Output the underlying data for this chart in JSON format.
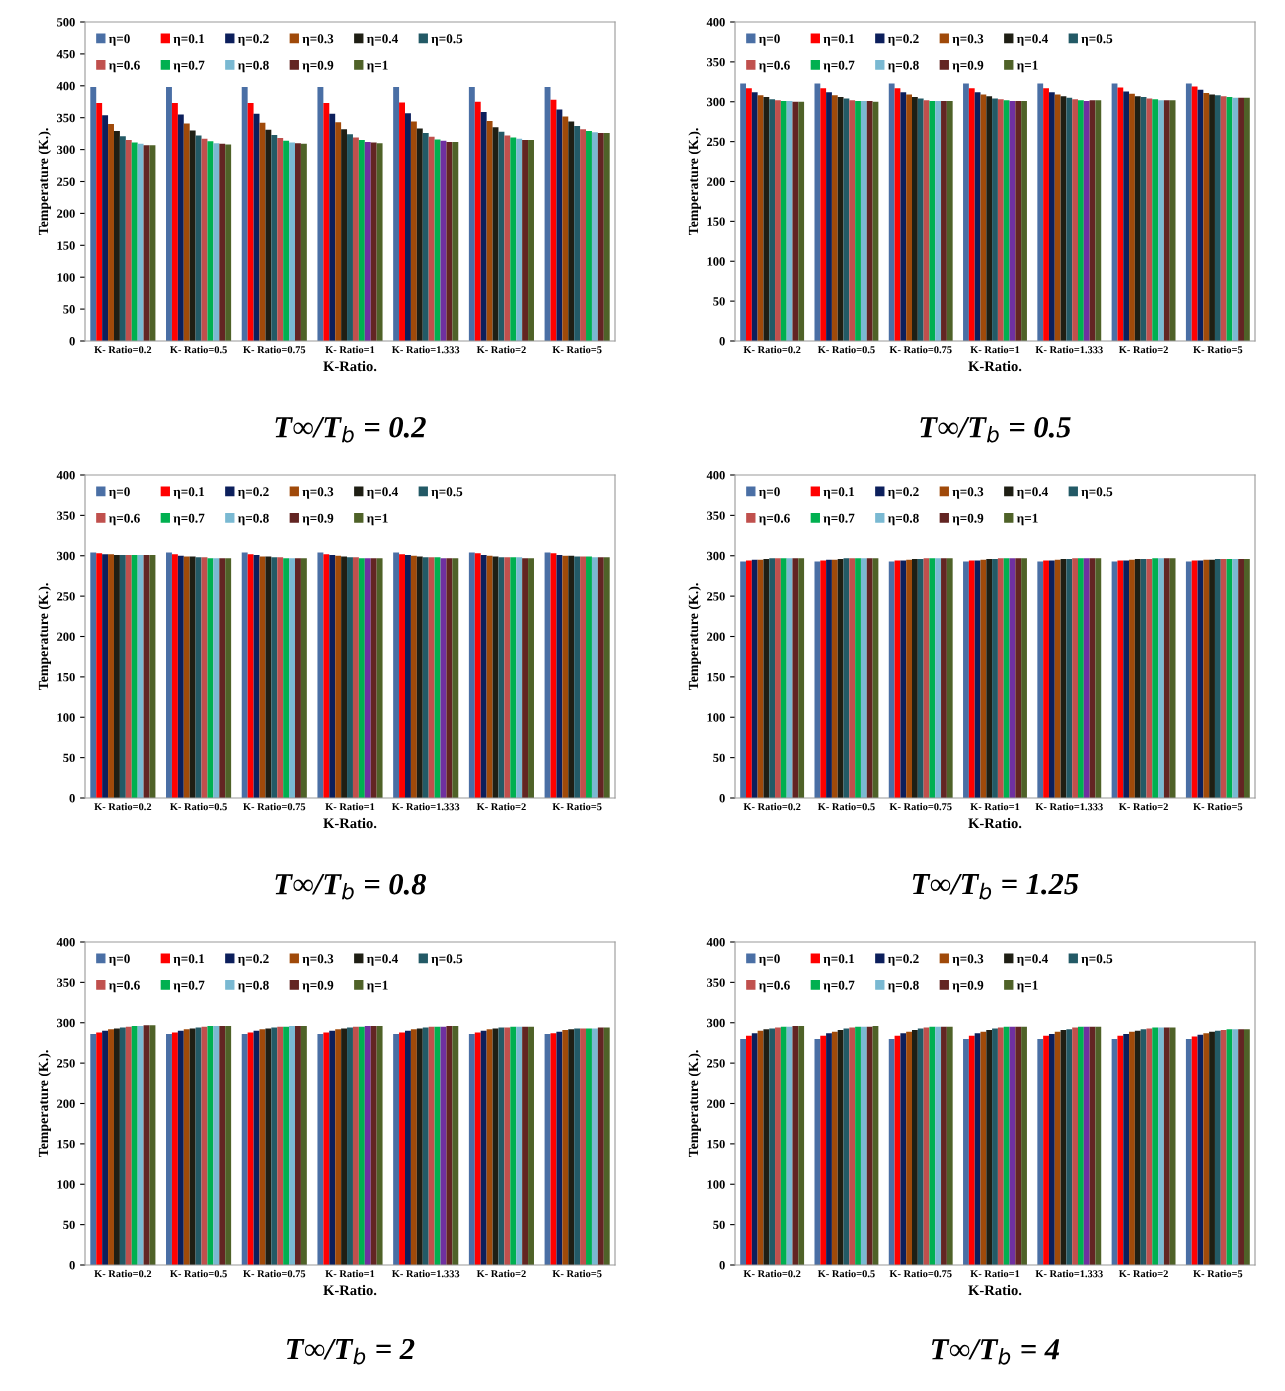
{
  "chart_data": [
    {
      "type": "bar",
      "xlabel": "K-Ratio.",
      "ylabel": "Temperature (K.).",
      "ylim": [
        0,
        500
      ],
      "yticks": [
        0,
        50,
        100,
        150,
        200,
        250,
        300,
        350,
        400,
        450,
        500
      ],
      "legend": "top left",
      "grid": false,
      "annotations": [
        "T∞/T$_{b}$ = 0.2"
      ],
      "categories": [
        "K- Ratio=0.2",
        "K- Ratio=0.5",
        "K- Ratio=0.75",
        "K- Ratio=1",
        "K- Ratio=1.333",
        "K- Ratio=2",
        "K- Ratio=5"
      ],
      "series": [
        {
          "name": "η=0",
          "color": "#4a6fa5",
          "values": [
            398,
            398,
            398,
            398,
            398,
            398,
            398
          ]
        },
        {
          "name": "η=0.1",
          "color": "#ff0000",
          "values": [
            373,
            373,
            373,
            373,
            374,
            375,
            378
          ]
        },
        {
          "name": "η=0.2",
          "color": "#0c1f5c",
          "values": [
            354,
            355,
            356,
            356,
            357,
            359,
            363
          ]
        },
        {
          "name": "η=0.3",
          "color": "#a04a0a",
          "values": [
            340,
            341,
            342,
            343,
            344,
            345,
            352
          ]
        },
        {
          "name": "η=0.4",
          "color": "#1f1f14",
          "values": [
            329,
            330,
            331,
            332,
            333,
            335,
            344
          ]
        },
        {
          "name": "η=0.5",
          "color": "#235a66",
          "values": [
            321,
            322,
            323,
            324,
            326,
            328,
            337
          ]
        },
        {
          "name": "η=0.6",
          "color": "#c0504d",
          "values": [
            315,
            317,
            318,
            319,
            320,
            322,
            332
          ]
        },
        {
          "name": "η=0.7",
          "color": "#00b050",
          "values": [
            311,
            313,
            314,
            315,
            316,
            319,
            329
          ]
        },
        {
          "name": "η=0.8",
          "color": "#7ab9d2",
          "colors": [
            "#7ab9d2",
            "#7ab9d2",
            "#7ab9d2",
            "#7030a0",
            "#7030a0",
            "#7ab9d2",
            "#7ab9d2"
          ],
          "values": [
            309,
            310,
            311,
            312,
            314,
            317,
            327
          ]
        },
        {
          "name": "η=0.9",
          "color": "#632523",
          "values": [
            307,
            309,
            310,
            311,
            312,
            315,
            326
          ]
        },
        {
          "name": "η=1",
          "color": "#4f6228",
          "values": [
            307,
            308,
            309,
            310,
            312,
            315,
            326
          ]
        }
      ]
    },
    {
      "type": "bar",
      "xlabel": "K-Ratio.",
      "ylabel": "Temperature (K.).",
      "ylim": [
        0,
        400
      ],
      "yticks": [
        0,
        50,
        100,
        150,
        200,
        250,
        300,
        350,
        400
      ],
      "legend": "top left",
      "grid": false,
      "annotations": [
        "T∞/T$_{b}$ = 0.5"
      ],
      "categories": [
        "K- Ratio=0.2",
        "K- Ratio=0.5",
        "K- Ratio=0.75",
        "K- Ratio=1",
        "K- Ratio=1.333",
        "K- Ratio=2",
        "K- Ratio=5"
      ],
      "series": [
        {
          "name": "η=0",
          "color": "#4a6fa5",
          "values": [
            323,
            323,
            323,
            323,
            323,
            323,
            323
          ]
        },
        {
          "name": "η=0.1",
          "color": "#ff0000",
          "values": [
            317,
            317,
            317,
            317,
            317,
            318,
            319
          ]
        },
        {
          "name": "η=0.2",
          "color": "#0c1f5c",
          "values": [
            312,
            312,
            312,
            312,
            312,
            313,
            315
          ]
        },
        {
          "name": "η=0.3",
          "color": "#a04a0a",
          "values": [
            308,
            308,
            309,
            309,
            309,
            310,
            311
          ]
        },
        {
          "name": "η=0.4",
          "color": "#1f1f14",
          "values": [
            306,
            306,
            306,
            307,
            307,
            307,
            309
          ]
        },
        {
          "name": "η=0.5",
          "color": "#235a66",
          "values": [
            303,
            304,
            304,
            304,
            305,
            306,
            308
          ]
        },
        {
          "name": "η=0.6",
          "color": "#c0504d",
          "values": [
            302,
            302,
            302,
            303,
            303,
            304,
            307
          ]
        },
        {
          "name": "η=0.7",
          "color": "#00b050",
          "values": [
            301,
            301,
            301,
            302,
            302,
            303,
            306
          ]
        },
        {
          "name": "η=0.8",
          "color": "#7ab9d2",
          "colors": [
            "#7ab9d2",
            "#7ab9d2",
            "#7ab9d2",
            "#7030a0",
            "#7030a0",
            "#7ab9d2",
            "#7ab9d2"
          ],
          "values": [
            301,
            301,
            301,
            301,
            301,
            302,
            305
          ]
        },
        {
          "name": "η=0.9",
          "color": "#632523",
          "values": [
            300,
            301,
            301,
            301,
            302,
            302,
            305
          ]
        },
        {
          "name": "η=1",
          "color": "#4f6228",
          "values": [
            300,
            300,
            301,
            301,
            302,
            302,
            305
          ]
        }
      ]
    },
    {
      "type": "bar",
      "xlabel": "K-Ratio.",
      "ylabel": "Temperature (K.).",
      "ylim": [
        0,
        400
      ],
      "yticks": [
        0,
        50,
        100,
        150,
        200,
        250,
        300,
        350,
        400
      ],
      "legend": "top left",
      "grid": false,
      "annotations": [
        "T∞/T$_{b}$ = 0.8"
      ],
      "categories": [
        "K- Ratio=0.2",
        "K- Ratio=0.5",
        "K- Ratio=0.75",
        "K- Ratio=1",
        "K- Ratio=1.333",
        "K- Ratio=2",
        "K- Ratio=5"
      ],
      "series": [
        {
          "name": "η=0",
          "color": "#4a6fa5",
          "values": [
            304,
            304,
            304,
            304,
            304,
            304,
            304
          ]
        },
        {
          "name": "η=0.1",
          "color": "#ff0000",
          "values": [
            303,
            302,
            302,
            302,
            302,
            303,
            303
          ]
        },
        {
          "name": "η=0.2",
          "color": "#0c1f5c",
          "values": [
            302,
            300,
            301,
            301,
            301,
            301,
            301
          ]
        },
        {
          "name": "η=0.3",
          "color": "#a04a0a",
          "values": [
            302,
            299,
            299,
            300,
            300,
            300,
            300
          ]
        },
        {
          "name": "η=0.4",
          "color": "#1f1f14",
          "values": [
            301,
            299,
            299,
            299,
            299,
            299,
            300
          ]
        },
        {
          "name": "η=0.5",
          "color": "#235a66",
          "values": [
            301,
            298,
            298,
            298,
            298,
            298,
            299
          ]
        },
        {
          "name": "η=0.6",
          "color": "#c0504d",
          "values": [
            301,
            298,
            298,
            298,
            298,
            298,
            299
          ]
        },
        {
          "name": "η=0.7",
          "color": "#00b050",
          "values": [
            301,
            297,
            297,
            297,
            298,
            298,
            299
          ]
        },
        {
          "name": "η=0.8",
          "color": "#7ab9d2",
          "colors": [
            "#7ab9d2",
            "#7ab9d2",
            "#7ab9d2",
            "#7030a0",
            "#7030a0",
            "#7ab9d2",
            "#7ab9d2"
          ],
          "values": [
            301,
            297,
            297,
            297,
            297,
            298,
            298
          ]
        },
        {
          "name": "η=0.9",
          "color": "#632523",
          "values": [
            301,
            297,
            297,
            297,
            297,
            297,
            298
          ]
        },
        {
          "name": "η=1",
          "color": "#4f6228",
          "values": [
            301,
            297,
            297,
            297,
            297,
            297,
            298
          ]
        }
      ]
    },
    {
      "type": "bar",
      "xlabel": "K-Ratio.",
      "ylabel": "Temperature (K.).",
      "ylim": [
        0,
        400
      ],
      "yticks": [
        0,
        50,
        100,
        150,
        200,
        250,
        300,
        350,
        400
      ],
      "legend": "top left",
      "grid": false,
      "annotations": [
        "T∞/T$_{b}$ = 1.25"
      ],
      "categories": [
        "K- Ratio=0.2",
        "K- Ratio=0.5",
        "K- Ratio=0.75",
        "K- Ratio=1",
        "K- Ratio=1.333",
        "K- Ratio=2",
        "K- Ratio=5"
      ],
      "series": [
        {
          "name": "η=0",
          "color": "#4a6fa5",
          "values": [
            293,
            293,
            293,
            293,
            293,
            293,
            293
          ]
        },
        {
          "name": "η=0.1",
          "color": "#ff0000",
          "values": [
            294,
            294,
            294,
            294,
            294,
            294,
            294
          ]
        },
        {
          "name": "η=0.2",
          "color": "#0c1f5c",
          "values": [
            295,
            295,
            294,
            294,
            294,
            294,
            294
          ]
        },
        {
          "name": "η=0.3",
          "color": "#a04a0a",
          "values": [
            295,
            295,
            295,
            295,
            295,
            295,
            295
          ]
        },
        {
          "name": "η=0.4",
          "color": "#1f1f14",
          "values": [
            296,
            296,
            296,
            296,
            296,
            296,
            295
          ]
        },
        {
          "name": "η=0.5",
          "color": "#235a66",
          "values": [
            297,
            297,
            296,
            296,
            296,
            296,
            296
          ]
        },
        {
          "name": "η=0.6",
          "color": "#c0504d",
          "values": [
            297,
            297,
            297,
            297,
            297,
            296,
            296
          ]
        },
        {
          "name": "η=0.7",
          "color": "#00b050",
          "values": [
            297,
            297,
            297,
            297,
            297,
            297,
            296
          ]
        },
        {
          "name": "η=0.8",
          "color": "#7ab9d2",
          "colors": [
            "#7ab9d2",
            "#7ab9d2",
            "#7ab9d2",
            "#7030a0",
            "#7030a0",
            "#7ab9d2",
            "#7ab9d2"
          ],
          "values": [
            297,
            297,
            297,
            297,
            297,
            297,
            296
          ]
        },
        {
          "name": "η=0.9",
          "color": "#632523",
          "values": [
            297,
            297,
            297,
            297,
            297,
            297,
            296
          ]
        },
        {
          "name": "η=1",
          "color": "#4f6228",
          "values": [
            297,
            297,
            297,
            297,
            297,
            297,
            296
          ]
        }
      ]
    },
    {
      "type": "bar",
      "xlabel": "K-Ratio.",
      "ylabel": "Temperature (K.).",
      "ylim": [
        0,
        400
      ],
      "yticks": [
        0,
        50,
        100,
        150,
        200,
        250,
        300,
        350,
        400
      ],
      "legend": "top left",
      "grid": false,
      "annotations": [
        "T∞/T$_{b}$ = 2"
      ],
      "categories": [
        "K- Ratio=0.2",
        "K- Ratio=0.5",
        "K- Ratio=0.75",
        "K- Ratio=1",
        "K- Ratio=1.333",
        "K- Ratio=2",
        "K- Ratio=5"
      ],
      "series": [
        {
          "name": "η=0",
          "color": "#4a6fa5",
          "values": [
            286,
            286,
            286,
            286,
            286,
            286,
            286
          ]
        },
        {
          "name": "η=0.1",
          "color": "#ff0000",
          "values": [
            288,
            288,
            288,
            288,
            288,
            288,
            287
          ]
        },
        {
          "name": "η=0.2",
          "color": "#0c1f5c",
          "values": [
            290,
            290,
            290,
            290,
            290,
            290,
            289
          ]
        },
        {
          "name": "η=0.3",
          "color": "#a04a0a",
          "values": [
            292,
            292,
            292,
            292,
            292,
            292,
            291
          ]
        },
        {
          "name": "η=0.4",
          "color": "#1f1f14",
          "values": [
            293,
            293,
            293,
            293,
            293,
            293,
            292
          ]
        },
        {
          "name": "η=0.5",
          "color": "#235a66",
          "values": [
            294,
            294,
            294,
            294,
            294,
            294,
            293
          ]
        },
        {
          "name": "η=0.6",
          "color": "#c0504d",
          "values": [
            295,
            295,
            295,
            295,
            295,
            294,
            293
          ]
        },
        {
          "name": "η=0.7",
          "color": "#00b050",
          "values": [
            296,
            296,
            295,
            295,
            295,
            295,
            293
          ]
        },
        {
          "name": "η=0.8",
          "color": "#7ab9d2",
          "colors": [
            "#7ab9d2",
            "#7ab9d2",
            "#7ab9d2",
            "#7030a0",
            "#7030a0",
            "#7ab9d2",
            "#7ab9d2"
          ],
          "values": [
            296,
            296,
            296,
            296,
            295,
            295,
            293
          ]
        },
        {
          "name": "η=0.9",
          "color": "#632523",
          "values": [
            297,
            296,
            296,
            296,
            296,
            295,
            294
          ]
        },
        {
          "name": "η=1",
          "color": "#4f6228",
          "values": [
            297,
            296,
            296,
            296,
            296,
            295,
            294
          ]
        }
      ]
    },
    {
      "type": "bar",
      "xlabel": "K-Ratio.",
      "ylabel": "Temperature (K.).",
      "ylim": [
        0,
        400
      ],
      "yticks": [
        0,
        50,
        100,
        150,
        200,
        250,
        300,
        350,
        400
      ],
      "legend": "top left",
      "grid": false,
      "annotations": [
        "T∞/T$_{b}$ = 4"
      ],
      "categories": [
        "K- Ratio=0.2",
        "K- Ratio=0.5",
        "K- Ratio=0.75",
        "K- Ratio=1",
        "K- Ratio=1.333",
        "K- Ratio=2",
        "K- Ratio=5"
      ],
      "series": [
        {
          "name": "η=0",
          "color": "#4a6fa5",
          "values": [
            280,
            280,
            280,
            280,
            280,
            280,
            280
          ]
        },
        {
          "name": "η=0.1",
          "color": "#ff0000",
          "values": [
            284,
            284,
            284,
            284,
            284,
            284,
            283
          ]
        },
        {
          "name": "η=0.2",
          "color": "#0c1f5c",
          "values": [
            287,
            287,
            287,
            287,
            286,
            286,
            285
          ]
        },
        {
          "name": "η=0.3",
          "color": "#a04a0a",
          "values": [
            290,
            289,
            289,
            289,
            289,
            289,
            287
          ]
        },
        {
          "name": "η=0.4",
          "color": "#1f1f14",
          "values": [
            292,
            291,
            291,
            291,
            291,
            290,
            289
          ]
        },
        {
          "name": "η=0.5",
          "color": "#235a66",
          "values": [
            293,
            293,
            293,
            293,
            292,
            292,
            290
          ]
        },
        {
          "name": "η=0.6",
          "color": "#c0504d",
          "values": [
            294,
            294,
            294,
            294,
            294,
            293,
            291
          ]
        },
        {
          "name": "η=0.7",
          "color": "#00b050",
          "values": [
            295,
            295,
            295,
            295,
            295,
            294,
            292
          ]
        },
        {
          "name": "η=0.8",
          "color": "#7ab9d2",
          "colors": [
            "#7ab9d2",
            "#7ab9d2",
            "#7ab9d2",
            "#7030a0",
            "#7030a0",
            "#7ab9d2",
            "#7ab9d2"
          ],
          "values": [
            295,
            295,
            295,
            295,
            295,
            294,
            292
          ]
        },
        {
          "name": "η=0.9",
          "color": "#632523",
          "values": [
            296,
            295,
            295,
            295,
            295,
            294,
            292
          ]
        },
        {
          "name": "η=1",
          "color": "#4f6228",
          "values": [
            296,
            296,
            295,
            295,
            295,
            294,
            292
          ]
        }
      ]
    }
  ]
}
